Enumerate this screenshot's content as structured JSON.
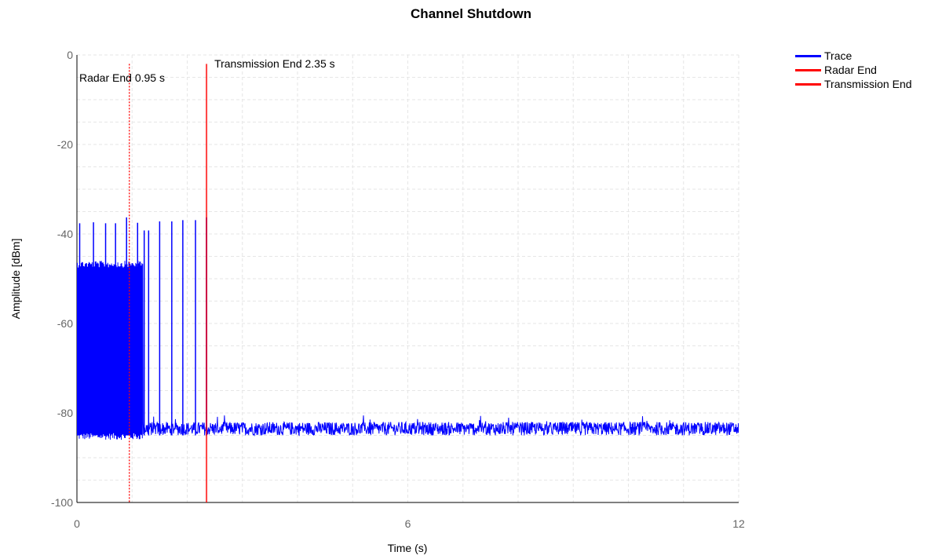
{
  "chart_data": {
    "type": "line",
    "title": "Channel Shutdown",
    "xlabel": "Time (s)",
    "ylabel": "Amplitude [dBm]",
    "xlim": [
      0,
      12
    ],
    "ylim": [
      -100,
      0
    ],
    "x_ticks": [
      "0",
      "6",
      "12"
    ],
    "y_ticks": [
      "0",
      "-20",
      "-40",
      "-60",
      "-80",
      "-100"
    ],
    "grid": true,
    "legend_position": "top-right",
    "legend": [
      {
        "name": "Trace",
        "color": "#0000ff"
      },
      {
        "name": "Radar End",
        "color": "#ff0000"
      },
      {
        "name": "Transmission End",
        "color": "#ff0000"
      }
    ],
    "series": [
      {
        "name": "Trace",
        "color": "#0000ff",
        "noise_floor_dbm": [
          -85,
          -82
        ],
        "radar_burst_band_dbm": [
          -86,
          -46
        ],
        "radar_burst_end_s": 1.2,
        "spikes": [
          {
            "x": 0.05,
            "y": -37.6
          },
          {
            "x": 0.3,
            "y": -37.4
          },
          {
            "x": 0.52,
            "y": -37.6
          },
          {
            "x": 0.7,
            "y": -37.6
          },
          {
            "x": 0.9,
            "y": -36.3
          },
          {
            "x": 1.1,
            "y": -37.5
          },
          {
            "x": 1.22,
            "y": -39.2
          },
          {
            "x": 1.3,
            "y": -39.2
          },
          {
            "x": 1.5,
            "y": -37.2
          },
          {
            "x": 1.72,
            "y": -37.2
          },
          {
            "x": 1.92,
            "y": -36.9
          },
          {
            "x": 2.15,
            "y": -36.9
          },
          {
            "x": 2.35,
            "y": -36.3
          }
        ]
      }
    ],
    "markers": [
      {
        "name": "Radar End",
        "x": 0.95,
        "style": "dotted",
        "color": "#ff0000",
        "label": "Radar End 0.95 s"
      },
      {
        "name": "Transmission End",
        "x": 2.35,
        "style": "solid",
        "color": "#ff0000",
        "label": "Transmission End 2.35 s"
      }
    ]
  }
}
